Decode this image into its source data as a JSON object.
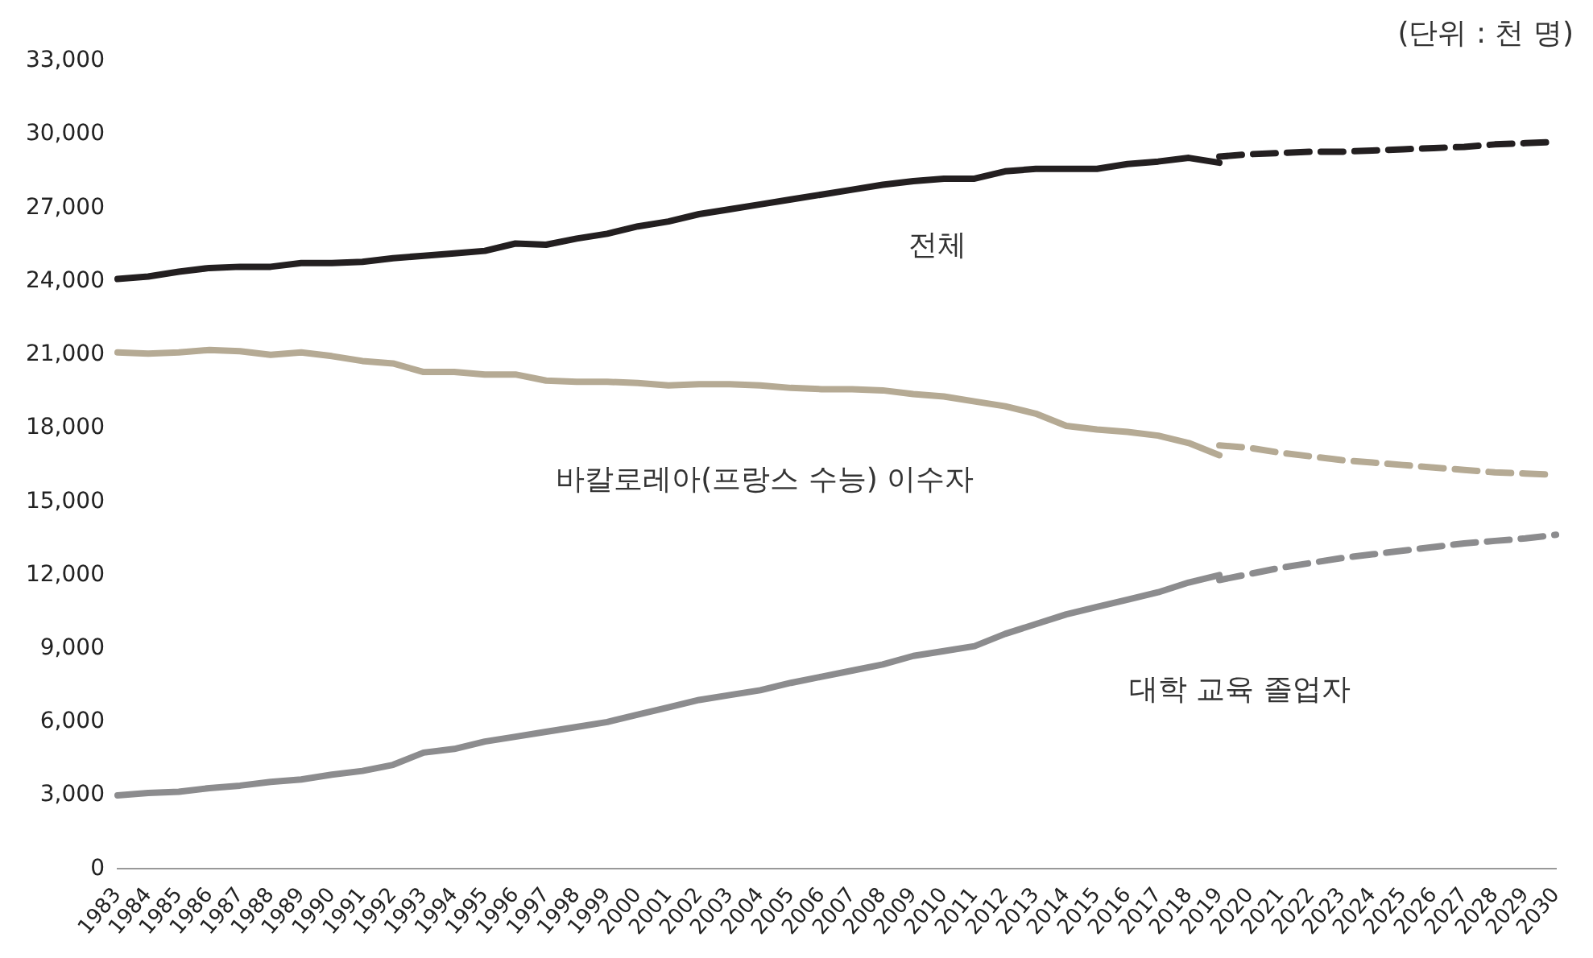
{
  "chart_data": {
    "type": "line",
    "categories": [
      "1983",
      "1984",
      "1985",
      "1986",
      "1987",
      "1988",
      "1989",
      "1990",
      "1991",
      "1992",
      "1993",
      "1994",
      "1995",
      "1996",
      "1997",
      "1998",
      "1999",
      "2000",
      "2001",
      "2002",
      "2003",
      "2004",
      "2005",
      "2006",
      "2007",
      "2008",
      "2009",
      "2010",
      "2011",
      "2012",
      "2013",
      "2014",
      "2015",
      "2016",
      "2017",
      "2018",
      "2019",
      "2020",
      "2021",
      "2022",
      "2023",
      "2024",
      "2025",
      "2026",
      "2027",
      "2028",
      "2029",
      "2030"
    ],
    "ylim": [
      0,
      33000
    ],
    "yticks": [
      0,
      {
        "value": 3000,
        "label": "3,000"
      },
      {
        "value": 6000,
        "label": "6,000"
      },
      {
        "value": 9000,
        "label": "9,000"
      },
      {
        "value": 12000,
        "label": "12,000"
      },
      {
        "value": 15000,
        "label": "15,000"
      },
      {
        "value": 18000,
        "label": "18,000"
      },
      {
        "value": 21000,
        "label": "21,000"
      },
      {
        "value": 24000,
        "label": "24,000"
      },
      {
        "value": 27000,
        "label": "27,000"
      },
      {
        "value": 30000,
        "label": "30,000"
      },
      {
        "value": 33000,
        "label": "33,000"
      }
    ],
    "grid": false,
    "legend": false,
    "marker": "none",
    "annotations": [
      "(단위 : 천 명)"
    ],
    "series": [
      {
        "name": "전체",
        "color": "#231f20",
        "line_style": "solid",
        "values": [
          24100,
          24200,
          24400,
          24550,
          24600,
          24600,
          24750,
          24750,
          24800,
          24950,
          25050,
          25150,
          25250,
          25550,
          25500,
          25750,
          25950,
          26250,
          26450,
          26750,
          26950,
          27150,
          27350,
          27550,
          27750,
          27950,
          28100,
          28200,
          28200,
          28500,
          28600,
          28600,
          28600,
          28800,
          28900,
          29050,
          28850,
          null,
          null,
          null,
          null,
          null,
          null,
          null,
          null,
          null,
          null,
          null
        ]
      },
      {
        "color": "#231f20",
        "line_style": "dashed",
        "values": [
          null,
          null,
          null,
          null,
          null,
          null,
          null,
          null,
          null,
          null,
          null,
          null,
          null,
          null,
          null,
          null,
          null,
          null,
          null,
          null,
          null,
          null,
          null,
          null,
          null,
          null,
          null,
          null,
          null,
          null,
          null,
          null,
          null,
          null,
          null,
          null,
          29100,
          29200,
          29250,
          29300,
          29300,
          29350,
          29400,
          29450,
          29500,
          29600,
          29650,
          29700
        ]
      },
      {
        "name": "바칼로레아(프랑스 수능) 이수자",
        "color": "#b5aa94",
        "line_style": "solid",
        "values": [
          21100,
          21050,
          21100,
          21200,
          21150,
          21000,
          21100,
          20950,
          20750,
          20650,
          20300,
          20300,
          20200,
          20200,
          19950,
          19900,
          19900,
          19850,
          19750,
          19800,
          19800,
          19750,
          19650,
          19600,
          19600,
          19550,
          19400,
          19300,
          19100,
          18900,
          18600,
          18100,
          17950,
          17850,
          17700,
          17400,
          16900,
          null,
          null,
          null,
          null,
          null,
          null,
          null,
          null,
          null,
          null,
          null
        ]
      },
      {
        "color": "#b5aa94",
        "line_style": "dashed",
        "values": [
          null,
          null,
          null,
          null,
          null,
          null,
          null,
          null,
          null,
          null,
          null,
          null,
          null,
          null,
          null,
          null,
          null,
          null,
          null,
          null,
          null,
          null,
          null,
          null,
          null,
          null,
          null,
          null,
          null,
          null,
          null,
          null,
          null,
          null,
          null,
          null,
          17300,
          17200,
          17000,
          16850,
          16700,
          16600,
          16500,
          16400,
          16300,
          16200,
          16150,
          16100
        ]
      },
      {
        "name": "대학 교육 졸업자",
        "color": "#8c8c8e",
        "line_style": "solid",
        "values": [
          3000,
          3100,
          3150,
          3300,
          3400,
          3550,
          3650,
          3850,
          4000,
          4250,
          4750,
          4900,
          5200,
          5400,
          5600,
          5800,
          6000,
          6300,
          6600,
          6900,
          7100,
          7300,
          7600,
          7850,
          8100,
          8350,
          8700,
          8900,
          9100,
          9600,
          10000,
          10400,
          10700,
          11000,
          11300,
          11700,
          12000,
          null,
          null,
          null,
          null,
          null,
          null,
          null,
          null,
          null,
          null,
          null
        ]
      },
      {
        "color": "#8c8c8e",
        "line_style": "dashed",
        "values": [
          null,
          null,
          null,
          null,
          null,
          null,
          null,
          null,
          null,
          null,
          null,
          null,
          null,
          null,
          null,
          null,
          null,
          null,
          null,
          null,
          null,
          null,
          null,
          null,
          null,
          null,
          null,
          null,
          null,
          null,
          null,
          null,
          null,
          null,
          null,
          null,
          11800,
          12050,
          12300,
          12500,
          12700,
          12850,
          13000,
          13150,
          13300,
          13400,
          13500,
          13650
        ]
      }
    ]
  }
}
